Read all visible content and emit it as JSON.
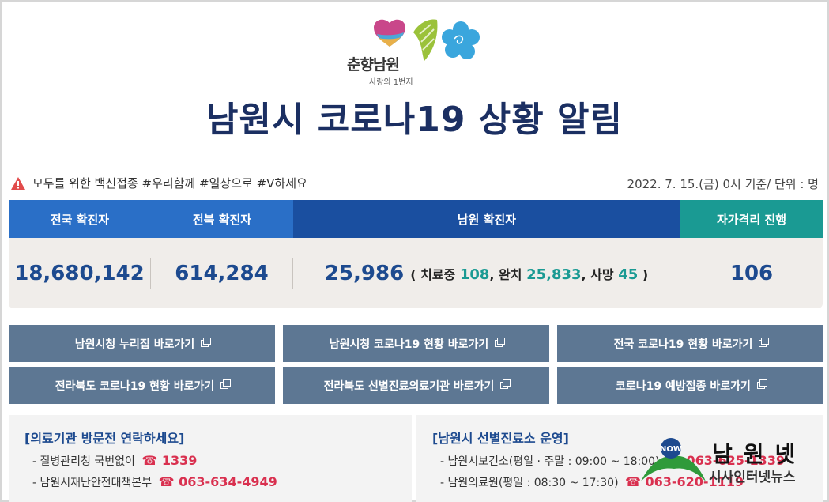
{
  "logo": {
    "slogan": "춘향남원",
    "subtitle": "사랑의 1번지"
  },
  "page_title": "남원시 코로나19 상황 알림",
  "notice": {
    "text": "모두를 위한 백신접종 #우리함께 #일상으로 #V하세요",
    "icon": "warning-icon",
    "asof": "2022. 7. 15.(금) 0시 기준/ 단위 : 명"
  },
  "stats": {
    "headers": [
      "전국 확진자",
      "전북 확진자",
      "남원 확진자",
      "자가격리 진행"
    ],
    "national": "18,680,142",
    "jeonbuk": "614,284",
    "namwon": "25,986",
    "namwon_detail": {
      "open": "( 치료중 ",
      "treating": "108",
      "sep1": ", 완치 ",
      "recovered": "25,833",
      "sep2": ", 사망 ",
      "deaths": "45",
      "close": " )"
    },
    "self_quarantine": "106",
    "colors": {
      "blue": "#2a6fc7",
      "navy": "#1a4fa0",
      "teal": "#1a9a93"
    }
  },
  "links": [
    "남원시청 누리집 바로가기",
    "남원시청 코로나19 현황 바로가기",
    "전국 코로나19 현황 바로가기",
    "전라북도 코로나19 현황 바로가기",
    "전라북도 선별진료의료기관 바로가기",
    "코로나19 예방접종 바로가기"
  ],
  "info_left": {
    "title": "[의료기관 방문전 연락하세요]",
    "line1_label": "- 질병관리청 국번없이",
    "line1_phone": "☎ 1339",
    "line2_label": "- 남원시재난안전대책본부",
    "line2_phone": "☎ 063-634-4949"
  },
  "info_right": {
    "title": "[남원시 선별진료소 운영]",
    "line1_label": "- 남원시보건소(평일 · 주말 : 09:00 ~ 18:00)",
    "line1_phone": "☎ 063-625-1339",
    "line2_label": "- 남원의료원(평일 : 08:30 ~ 17:30)",
    "line2_phone": "☎ 063-620-1119"
  },
  "watermark": {
    "name": "남원넷",
    "sub": "시사인터넷뉴스",
    "badge": "NOW"
  }
}
